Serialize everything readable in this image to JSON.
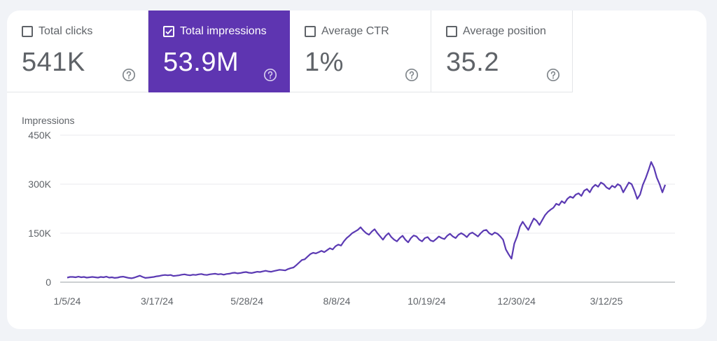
{
  "metrics": [
    {
      "label": "Total clicks",
      "value": "541K",
      "checked": false
    },
    {
      "label": "Total impressions",
      "value": "53.9M",
      "checked": true
    },
    {
      "label": "Average CTR",
      "value": "1%",
      "checked": false
    },
    {
      "label": "Average position",
      "value": "35.2",
      "checked": false
    }
  ],
  "icons": {
    "checkbox": "checkbox-icon",
    "help": "help-circle-icon"
  },
  "colors": {
    "accent": "#5e35b1",
    "line": "#5b3ab3",
    "text_muted": "#5f6368",
    "grid": "#e8eaed"
  },
  "chart_data": {
    "type": "line",
    "title": "",
    "ylabel": "Impressions",
    "xlabel": "",
    "ylim": [
      0,
      450000
    ],
    "yticks": [
      0,
      150000,
      300000,
      450000
    ],
    "ytick_labels": [
      "0",
      "150K",
      "300K",
      "450K"
    ],
    "xtick_labels": [
      "1/5/24",
      "3/17/24",
      "5/28/24",
      "8/8/24",
      "10/19/24",
      "12/30/24",
      "3/12/25"
    ],
    "x_start": "1/5/24",
    "x_end": "4/27/25",
    "grid": true,
    "legend": "none",
    "series": [
      {
        "values": [
          14000,
          16000,
          16000,
          15000,
          17000,
          15000,
          16000,
          14000,
          15000,
          16000,
          15000,
          14000,
          16000,
          15000,
          17000,
          14000,
          15000,
          13000,
          14000,
          16000,
          17000,
          15000,
          13000,
          12000,
          14000,
          17000,
          20000,
          16000,
          13000,
          14000,
          15000,
          16000,
          18000,
          19000,
          21000,
          22000,
          21000,
          22000,
          19000,
          20000,
          21000,
          23000,
          24000,
          22000,
          21000,
          23000,
          22000,
          24000,
          25000,
          23000,
          22000,
          24000,
          25000,
          26000,
          24000,
          25000,
          23000,
          25000,
          26000,
          28000,
          29000,
          27000,
          28000,
          30000,
          31000,
          29000,
          28000,
          30000,
          32000,
          31000,
          33000,
          35000,
          33000,
          32000,
          34000,
          36000,
          38000,
          37000,
          36000,
          40000,
          43000,
          45000,
          52000,
          60000,
          68000,
          70000,
          78000,
          86000,
          90000,
          88000,
          92000,
          96000,
          92000,
          98000,
          104000,
          100000,
          110000,
          115000,
          112000,
          125000,
          135000,
          142000,
          150000,
          155000,
          160000,
          168000,
          158000,
          150000,
          145000,
          155000,
          162000,
          150000,
          140000,
          130000,
          142000,
          150000,
          138000,
          130000,
          125000,
          135000,
          142000,
          130000,
          122000,
          135000,
          143000,
          140000,
          130000,
          125000,
          135000,
          138000,
          128000,
          125000,
          132000,
          140000,
          135000,
          132000,
          142000,
          148000,
          140000,
          135000,
          145000,
          150000,
          145000,
          138000,
          148000,
          152000,
          146000,
          140000,
          150000,
          158000,
          160000,
          150000,
          145000,
          152000,
          148000,
          140000,
          130000,
          100000,
          85000,
          72000,
          118000,
          140000,
          170000,
          185000,
          172000,
          160000,
          178000,
          195000,
          188000,
          175000,
          190000,
          205000,
          215000,
          222000,
          228000,
          240000,
          236000,
          248000,
          242000,
          255000,
          262000,
          258000,
          268000,
          272000,
          264000,
          280000,
          285000,
          275000,
          290000,
          298000,
          292000,
          305000,
          300000,
          290000,
          285000,
          295000,
          290000,
          300000,
          295000,
          275000,
          290000,
          305000,
          300000,
          280000,
          255000,
          268000,
          298000,
          318000,
          342000,
          368000,
          350000,
          320000,
          300000,
          275000,
          298000
        ]
      }
    ]
  }
}
